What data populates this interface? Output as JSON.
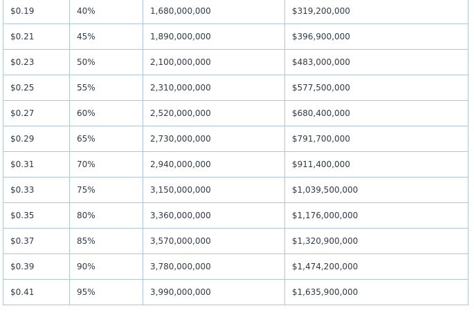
{
  "table": {
    "rows": [
      [
        "$0.19",
        "40%",
        "1,680,000,000",
        "$319,200,000"
      ],
      [
        "$0.21",
        "45%",
        "1,890,000,000",
        "$396,900,000"
      ],
      [
        "$0.23",
        "50%",
        "2,100,000,000",
        "$483,000,000"
      ],
      [
        "$0.25",
        "55%",
        "2,310,000,000",
        "$577,500,000"
      ],
      [
        "$0.27",
        "60%",
        "2,520,000,000",
        "$680,400,000"
      ],
      [
        "$0.29",
        "65%",
        "2,730,000,000",
        "$791,700,000"
      ],
      [
        "$0.31",
        "70%",
        "2,940,000,000",
        "$911,400,000"
      ],
      [
        "$0.33",
        "75%",
        "3,150,000,000",
        "$1,039,500,000"
      ],
      [
        "$0.35",
        "80%",
        "3,360,000,000",
        "$1,176,000,000"
      ],
      [
        "$0.37",
        "85%",
        "3,570,000,000",
        "$1,320,900,000"
      ],
      [
        "$0.39",
        "90%",
        "3,780,000,000",
        "$1,474,200,000"
      ],
      [
        "$0.41",
        "95%",
        "3,990,000,000",
        "$1,635,900,000"
      ]
    ]
  },
  "colors": {
    "border": "#adc5d6",
    "text": "#2f3a44",
    "background": "#ffffff"
  }
}
